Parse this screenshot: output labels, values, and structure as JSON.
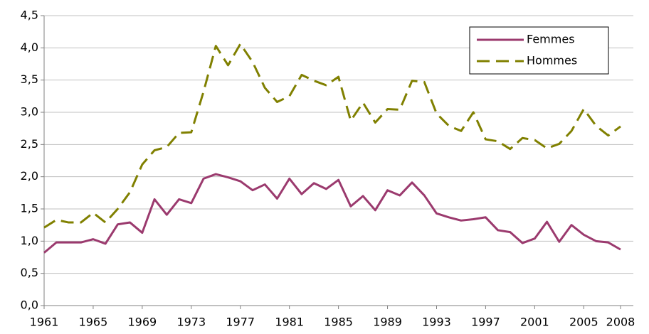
{
  "chart_data": {
    "type": "line",
    "x": [
      1961,
      1962,
      1963,
      1964,
      1965,
      1966,
      1967,
      1968,
      1969,
      1970,
      1971,
      1972,
      1973,
      1974,
      1975,
      1976,
      1977,
      1978,
      1979,
      1980,
      1981,
      1982,
      1983,
      1984,
      1985,
      1986,
      1987,
      1988,
      1989,
      1990,
      1991,
      1992,
      1993,
      1994,
      1995,
      1996,
      1997,
      1998,
      1999,
      2000,
      2001,
      2002,
      2003,
      2004,
      2005,
      2006,
      2007,
      2008
    ],
    "series": [
      {
        "name": "Femmes",
        "color": "#9b3a6e",
        "dash": false,
        "values": [
          0.82,
          0.98,
          0.98,
          0.98,
          1.03,
          0.96,
          1.26,
          1.29,
          1.13,
          1.65,
          1.41,
          1.65,
          1.59,
          1.97,
          2.04,
          1.99,
          1.93,
          1.79,
          1.88,
          1.66,
          1.97,
          1.73,
          1.9,
          1.81,
          1.95,
          1.54,
          1.7,
          1.48,
          1.79,
          1.71,
          1.91,
          1.71,
          1.43,
          1.37,
          1.32,
          1.34,
          1.37,
          1.17,
          1.14,
          0.97,
          1.04,
          1.3,
          0.99,
          1.25,
          1.1,
          1.0,
          0.98,
          0.87
        ]
      },
      {
        "name": "Hommes",
        "color": "#808000",
        "dash": true,
        "values": [
          1.21,
          1.33,
          1.29,
          1.29,
          1.44,
          1.29,
          1.5,
          1.76,
          2.19,
          2.41,
          2.46,
          2.68,
          2.69,
          3.32,
          4.03,
          3.73,
          4.06,
          3.78,
          3.38,
          3.16,
          3.25,
          3.58,
          3.49,
          3.42,
          3.55,
          2.87,
          3.15,
          2.84,
          3.05,
          3.04,
          3.49,
          3.47,
          2.98,
          2.79,
          2.71,
          3.0,
          2.58,
          2.55,
          2.43,
          2.6,
          2.57,
          2.44,
          2.51,
          2.71,
          3.05,
          2.79,
          2.64,
          2.78
        ]
      }
    ],
    "xlim": [
      1961,
      2008
    ],
    "xticks": [
      1961,
      1965,
      1969,
      1973,
      1977,
      1981,
      1985,
      1989,
      1993,
      1997,
      2001,
      2005,
      2008
    ],
    "ylim": [
      0,
      4.5
    ],
    "yticks": [
      {
        "value": 0,
        "label": "0,0"
      },
      {
        "value": 0.5,
        "label": "0,5"
      },
      {
        "value": 1,
        "label": "1,0"
      },
      {
        "value": 1.5,
        "label": "1,5"
      },
      {
        "value": 2,
        "label": "2,0"
      },
      {
        "value": 2.5,
        "label": "2,5"
      },
      {
        "value": 3,
        "label": "3,0"
      },
      {
        "value": 3.5,
        "label": "3,5"
      },
      {
        "value": 4,
        "label": "4,0"
      },
      {
        "value": 4.5,
        "label": "4,5"
      }
    ],
    "grid": true,
    "legend": "upper right"
  }
}
